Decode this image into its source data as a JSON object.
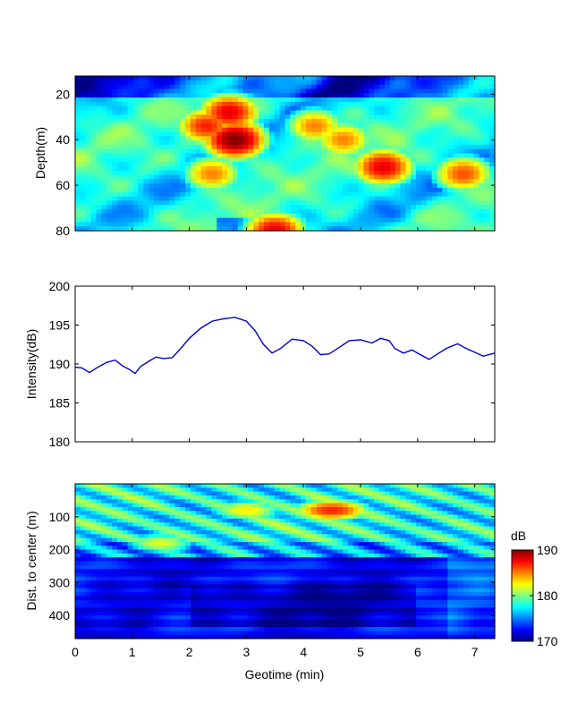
{
  "chart_data": [
    {
      "type": "heatmap",
      "ylabel": "Depth(m)",
      "xlim": [
        0,
        7.35
      ],
      "ylim": [
        80,
        12
      ],
      "yticks": [
        20,
        40,
        60,
        80
      ],
      "colorscale": "jet",
      "clim": [
        170,
        190
      ],
      "hotspots": [
        {
          "x": 2.8,
          "y": 40,
          "value": 190
        },
        {
          "x": 2.7,
          "y": 28,
          "value": 188
        },
        {
          "x": 2.3,
          "y": 34,
          "value": 187
        },
        {
          "x": 5.4,
          "y": 52,
          "value": 188
        },
        {
          "x": 6.8,
          "y": 55,
          "value": 186
        },
        {
          "x": 4.7,
          "y": 40,
          "value": 185
        },
        {
          "x": 4.2,
          "y": 34,
          "value": 185
        },
        {
          "x": 2.4,
          "y": 55,
          "value": 185
        },
        {
          "x": 3.5,
          "y": 80,
          "value": 188
        }
      ]
    },
    {
      "type": "line",
      "ylabel": "Intensity(dB)",
      "xlim": [
        0,
        7.35
      ],
      "ylim": [
        180,
        200
      ],
      "yticks": [
        180,
        185,
        190,
        195,
        200
      ],
      "series": [
        {
          "color": "#0000d0",
          "x": [
            0,
            0.12,
            0.25,
            0.4,
            0.55,
            0.7,
            0.82,
            0.95,
            1.05,
            1.15,
            1.3,
            1.42,
            1.55,
            1.7,
            1.85,
            2.0,
            2.2,
            2.4,
            2.6,
            2.8,
            3.0,
            3.15,
            3.3,
            3.45,
            3.6,
            3.8,
            4.0,
            4.15,
            4.3,
            4.45,
            4.6,
            4.8,
            5.0,
            5.2,
            5.35,
            5.5,
            5.6,
            5.75,
            5.9,
            6.05,
            6.2,
            6.35,
            6.5,
            6.7,
            6.85,
            7.0,
            7.15,
            7.35
          ],
          "y": [
            189.6,
            189.5,
            188.9,
            189.6,
            190.2,
            190.5,
            189.8,
            189.3,
            188.8,
            189.7,
            190.4,
            190.9,
            190.7,
            190.8,
            192.0,
            193.3,
            194.6,
            195.5,
            195.8,
            196.0,
            195.5,
            194.3,
            192.5,
            191.4,
            192.0,
            193.2,
            193.0,
            192.3,
            191.2,
            191.3,
            192.0,
            193.0,
            193.1,
            192.7,
            193.3,
            193.0,
            192.0,
            191.4,
            191.8,
            191.2,
            190.6,
            191.3,
            192.0,
            192.6,
            192.0,
            191.5,
            191.0,
            191.4
          ]
        }
      ]
    },
    {
      "type": "heatmap",
      "xlabel": "Geotime (min)",
      "ylabel": "Dist. to center (m)",
      "xlim": [
        0,
        7.35
      ],
      "ylim": [
        470,
        0
      ],
      "xticks": [
        0,
        1,
        2,
        3,
        4,
        5,
        6,
        7
      ],
      "yticks": [
        100,
        200,
        300,
        400
      ],
      "colorscale": "jet",
      "clim": [
        170,
        190
      ],
      "hotspots": [
        {
          "x": 4.5,
          "y": 80,
          "value": 187
        },
        {
          "x": 3.0,
          "y": 80,
          "value": 183
        },
        {
          "x": 1.5,
          "y": 180,
          "value": 182
        }
      ]
    }
  ],
  "colorbar": {
    "label": "dB",
    "ticks": [
      170,
      180,
      190
    ],
    "range": [
      170,
      190
    ]
  }
}
